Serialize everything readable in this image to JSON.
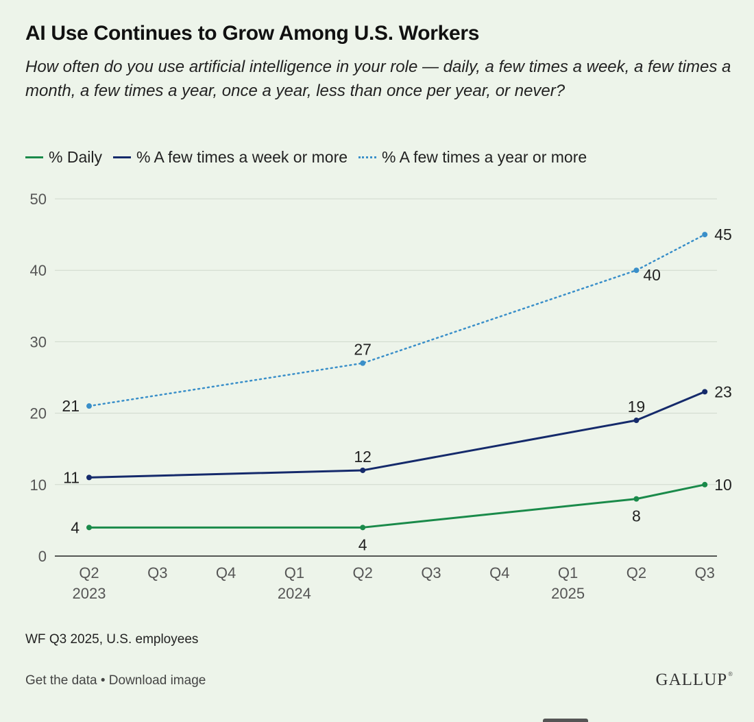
{
  "title": "AI Use Continues to Grow Among U.S. Workers",
  "subtitle": "How often do you use artificial intelligence in your role — daily, a few times a week, a few times a month, a few times a year, once a year, less than once per year, or never?",
  "source": "WF Q3 2025, U.S. employees",
  "footer": {
    "get_data": "Get the data",
    "separator": " • ",
    "download": "Download image",
    "logo": "GALLUP",
    "logo_mark": "®"
  },
  "chart_data": {
    "type": "line",
    "ylim": [
      0,
      50
    ],
    "yticks": [
      0,
      10,
      20,
      30,
      40,
      50
    ],
    "grid": true,
    "legend_position": "top-left",
    "categories": [
      "Q2",
      "Q3",
      "Q4",
      "Q1",
      "Q2",
      "Q3",
      "Q4",
      "Q1",
      "Q2",
      "Q3"
    ],
    "year_labels": [
      {
        "index": 0,
        "label": "2023"
      },
      {
        "index": 3,
        "label": "2024"
      },
      {
        "index": 7,
        "label": "2025"
      }
    ],
    "series": [
      {
        "name": "% Daily",
        "color": "#1a8a4a",
        "style": "solid",
        "points": [
          {
            "x": 0,
            "y": 4,
            "label_pos": "left"
          },
          {
            "x": 4,
            "y": 4,
            "label_pos": "below"
          },
          {
            "x": 8,
            "y": 8,
            "label_pos": "below"
          },
          {
            "x": 9,
            "y": 10,
            "label_pos": "right"
          }
        ]
      },
      {
        "name": "% A few times a week or more",
        "color": "#152a6b",
        "style": "solid",
        "points": [
          {
            "x": 0,
            "y": 11,
            "label_pos": "left"
          },
          {
            "x": 4,
            "y": 12,
            "label_pos": "above"
          },
          {
            "x": 8,
            "y": 19,
            "label_pos": "above"
          },
          {
            "x": 9,
            "y": 23,
            "label_pos": "right"
          }
        ]
      },
      {
        "name": "% A few times a year or more",
        "color": "#3a8fc9",
        "style": "dotted",
        "points": [
          {
            "x": 0,
            "y": 21,
            "label_pos": "left"
          },
          {
            "x": 4,
            "y": 27,
            "label_pos": "above"
          },
          {
            "x": 8,
            "y": 40,
            "label_pos": "below-right"
          },
          {
            "x": 9,
            "y": 45,
            "label_pos": "right"
          }
        ]
      }
    ]
  }
}
